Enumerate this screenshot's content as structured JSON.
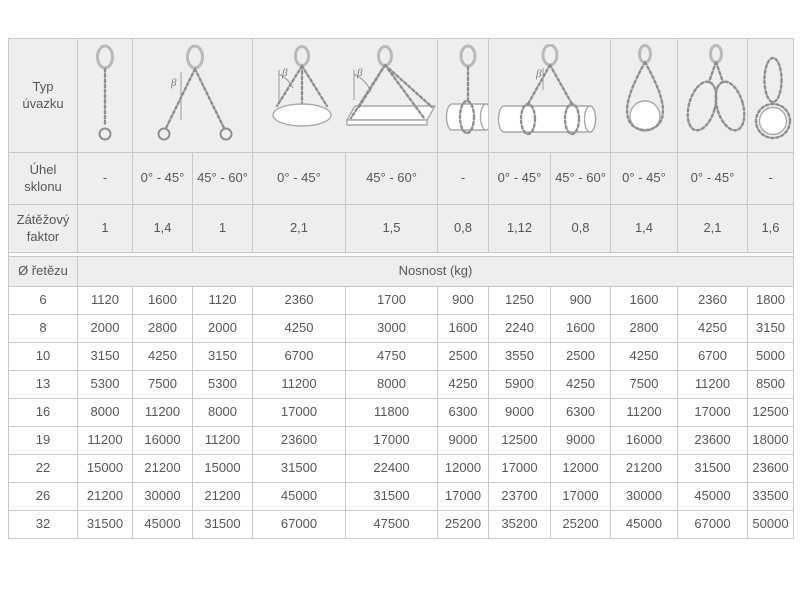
{
  "header": {
    "type_label": "Typ úvazku",
    "angle_label": "Úhel sklonu",
    "factor_label": "Zátěžový faktor",
    "diameter_label": "Ø řetězu",
    "capacity_label": "Nosnost (kg)",
    "beta_label": "β"
  },
  "sling_icons": [
    {
      "name": "single-leg-sling-icon",
      "columns": 1
    },
    {
      "name": "two-leg-sling-icon",
      "columns": 2
    },
    {
      "name": "three-leg-and-four-leg-sling-icon",
      "columns": 2
    },
    {
      "name": "single-choke-pipe-sling-icon",
      "columns": 1
    },
    {
      "name": "double-choke-pipe-sling-icon",
      "columns": 2
    },
    {
      "name": "single-basket-loop-sling-icon",
      "columns": 1
    },
    {
      "name": "double-basket-loop-sling-icon",
      "columns": 1
    },
    {
      "name": "endless-grommet-sling-icon",
      "columns": 1
    }
  ],
  "angle_row": [
    "-",
    "0° - 45°",
    "45° - 60°",
    "0° - 45°",
    "45° - 60°",
    "-",
    "0° - 45°",
    "45° - 60°",
    "0° - 45°",
    "0° - 45°",
    "-"
  ],
  "factor_row": [
    "1",
    "1,4",
    "1",
    "2,1",
    "1,5",
    "0,8",
    "1,12",
    "0,8",
    "1,4",
    "2,1",
    "1,6"
  ],
  "capacity_rows": [
    {
      "diameter": "6",
      "values": [
        "1120",
        "1600",
        "1120",
        "2360",
        "1700",
        "900",
        "1250",
        "900",
        "1600",
        "2360",
        "1800"
      ]
    },
    {
      "diameter": "8",
      "values": [
        "2000",
        "2800",
        "2000",
        "4250",
        "3000",
        "1600",
        "2240",
        "1600",
        "2800",
        "4250",
        "3150"
      ]
    },
    {
      "diameter": "10",
      "values": [
        "3150",
        "4250",
        "3150",
        "6700",
        "4750",
        "2500",
        "3550",
        "2500",
        "4250",
        "6700",
        "5000"
      ]
    },
    {
      "diameter": "13",
      "values": [
        "5300",
        "7500",
        "5300",
        "11200",
        "8000",
        "4250",
        "5900",
        "4250",
        "7500",
        "11200",
        "8500"
      ]
    },
    {
      "diameter": "16",
      "values": [
        "8000",
        "11200",
        "8000",
        "17000",
        "11800",
        "6300",
        "9000",
        "6300",
        "11200",
        "17000",
        "12500"
      ]
    },
    {
      "diameter": "19",
      "values": [
        "11200",
        "16000",
        "11200",
        "23600",
        "17000",
        "9000",
        "12500",
        "9000",
        "16000",
        "23600",
        "18000"
      ]
    },
    {
      "diameter": "22",
      "values": [
        "15000",
        "21200",
        "15000",
        "31500",
        "22400",
        "12000",
        "17000",
        "12000",
        "21200",
        "31500",
        "23600"
      ]
    },
    {
      "diameter": "26",
      "values": [
        "21200",
        "30000",
        "21200",
        "45000",
        "31500",
        "17000",
        "23700",
        "17000",
        "30000",
        "45000",
        "33500"
      ]
    },
    {
      "diameter": "32",
      "values": [
        "31500",
        "45000",
        "31500",
        "67000",
        "47500",
        "25200",
        "35200",
        "25200",
        "45000",
        "67000",
        "50000"
      ]
    }
  ],
  "colors": {
    "header_bg": "#efeeee",
    "border": "#c9c9c9",
    "text": "#565656",
    "page_bg": "#ffffff"
  }
}
